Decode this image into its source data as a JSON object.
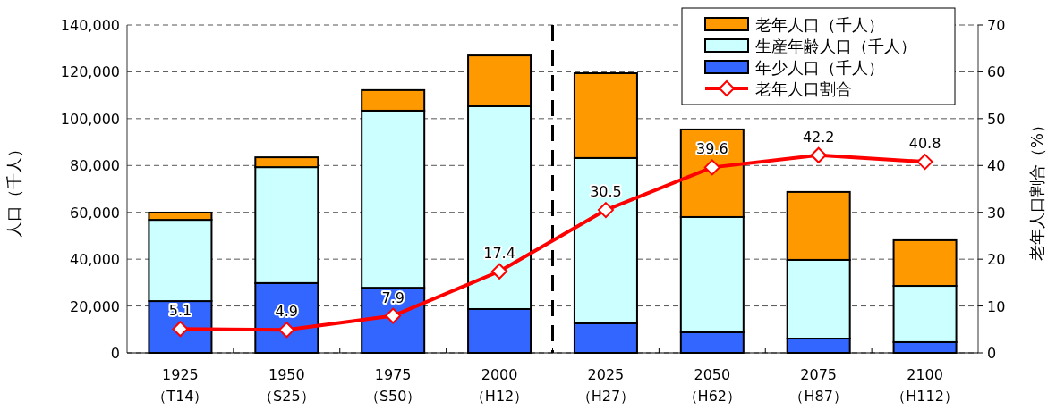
{
  "chart_data": {
    "type": "bar",
    "stacked": true,
    "ylabel": "人口（千人）",
    "y2label": "老年人口割合（%）",
    "categories": [
      "1925\n（T14）",
      "1950\n（S25）",
      "1975\n（S50）",
      "2000\n（H12）",
      "2025\n（H27）",
      "2050\n（H62）",
      "2075\n（H87）",
      "2100\n（H112）"
    ],
    "series": [
      {
        "name": "年少人口（千人）",
        "color": "#3366ff",
        "values": [
          22100,
          29800,
          27800,
          18700,
          12600,
          8800,
          6100,
          4600
        ]
      },
      {
        "name": "生産年齢人口（千人）",
        "color": "#ccffff",
        "values": [
          34700,
          49500,
          75600,
          86600,
          70600,
          49200,
          33600,
          24000
        ]
      },
      {
        "name": "老年人口（千人）",
        "color": "#ff9900",
        "values": [
          3100,
          4200,
          8800,
          21700,
          36200,
          37400,
          29000,
          19500
        ]
      },
      {
        "name": "老年人口割合",
        "type": "line",
        "axis": "y2",
        "color": "#ff0000",
        "marker": "diamond",
        "data_labels": true,
        "values": [
          5.1,
          4.9,
          7.9,
          17.4,
          30.5,
          39.6,
          42.2,
          40.8
        ]
      }
    ],
    "ylim": [
      0,
      140000
    ],
    "yticks": [
      {
        "value": 0,
        "label": "0"
      },
      {
        "value": 20000,
        "label": "20,000"
      },
      {
        "value": 40000,
        "label": "40,000"
      },
      {
        "value": 60000,
        "label": "60,000"
      },
      {
        "value": 80000,
        "label": "80,000"
      },
      {
        "value": 100000,
        "label": "100,000"
      },
      {
        "value": 120000,
        "label": "120,000"
      },
      {
        "value": 140000,
        "label": "140,000"
      }
    ],
    "y2lim": [
      0,
      70
    ],
    "y2ticks": [
      0,
      10,
      20,
      30,
      40,
      50,
      60,
      70
    ],
    "grid": "y",
    "legend": "top right"
  }
}
